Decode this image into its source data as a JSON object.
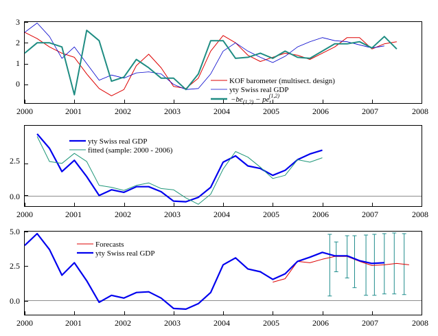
{
  "chart_data": [
    {
      "type": "line",
      "title": "",
      "xlim": [
        2000,
        2008
      ],
      "ylim": [
        -0.9,
        3
      ],
      "x_ticks": [
        "2000",
        "2001",
        "2002",
        "2003",
        "2004",
        "2005",
        "2006",
        "2007",
        "2008"
      ],
      "y_ticks": [
        "0",
        "1",
        "2",
        "3"
      ],
      "legend_position": "lower-right",
      "series": [
        {
          "name": "KOF barometer (multisect. design)",
          "color": "#dd0000",
          "width": 1,
          "x": [
            2000.0,
            2000.25,
            2000.5,
            2000.75,
            2001.0,
            2001.25,
            2001.5,
            2001.75,
            2002.0,
            2002.25,
            2002.5,
            2002.75,
            2003.0,
            2003.25,
            2003.5,
            2003.75,
            2004.0,
            2004.25,
            2004.5,
            2004.75,
            2005.0,
            2005.25,
            2005.5,
            2005.75,
            2006.0,
            2006.25,
            2006.5,
            2006.75,
            2007.0,
            2007.25,
            2007.5
          ],
          "values": [
            2.5,
            2.2,
            1.8,
            1.5,
            1.3,
            0.5,
            -0.2,
            -0.55,
            -0.25,
            0.9,
            1.45,
            0.8,
            -0.1,
            -0.2,
            0.3,
            1.6,
            2.35,
            2.0,
            1.4,
            1.1,
            1.3,
            1.5,
            1.4,
            1.2,
            1.5,
            1.8,
            2.25,
            2.25,
            1.7,
            1.95,
            2.05
          ]
        },
        {
          "name": "yty Swiss real GDP",
          "color": "#0000cc",
          "width": 0.8,
          "x": [
            2000.0,
            2000.25,
            2000.5,
            2000.75,
            2001.0,
            2001.25,
            2001.5,
            2001.75,
            2002.0,
            2002.25,
            2002.5,
            2002.75,
            2003.0,
            2003.25,
            2003.5,
            2003.75,
            2004.0,
            2004.25,
            2004.5,
            2004.75,
            2005.0,
            2005.25,
            2005.5,
            2005.75,
            2006.0,
            2006.25,
            2006.5,
            2006.75,
            2007.0,
            2007.25
          ],
          "values": [
            2.5,
            2.95,
            2.3,
            1.25,
            1.8,
            1.0,
            0.2,
            0.45,
            0.3,
            0.55,
            0.6,
            0.5,
            0.0,
            -0.25,
            -0.2,
            0.5,
            1.6,
            2.0,
            1.6,
            1.3,
            1.05,
            1.35,
            1.8,
            2.05,
            2.25,
            2.1,
            2.05,
            1.9,
            1.75,
            1.85
          ]
        },
        {
          "name": "",
          "color": "#1e8c82",
          "width": 2,
          "x": [
            2000.0,
            2000.25,
            2000.5,
            2000.75,
            2001.0,
            2001.25,
            2001.5,
            2001.75,
            2002.0,
            2002.25,
            2002.5,
            2002.75,
            2003.0,
            2003.25,
            2003.5,
            2003.75,
            2004.0,
            2004.25,
            2004.5,
            2004.75,
            2005.0,
            2005.25,
            2005.5,
            2005.75,
            2006.0,
            2006.25,
            2006.5,
            2006.75,
            2007.0,
            2007.25,
            2007.5
          ],
          "values": [
            1.5,
            2.0,
            2.0,
            1.8,
            -0.5,
            2.6,
            2.1,
            0.15,
            0.35,
            1.2,
            0.8,
            0.3,
            0.3,
            -0.25,
            0.5,
            2.1,
            2.1,
            1.25,
            1.3,
            1.5,
            1.25,
            1.6,
            1.3,
            1.25,
            1.6,
            1.95,
            1.95,
            2.05,
            1.75,
            2.3,
            1.7
          ]
        }
      ]
    },
    {
      "type": "line",
      "title": "",
      "xlim": [
        2000,
        2008
      ],
      "ylim": [
        -0.9,
        5.5
      ],
      "x_ticks": [
        "2000",
        "2001",
        "2002",
        "2003",
        "2004",
        "2005",
        "2006",
        "2007",
        "2008"
      ],
      "y_ticks": [
        "0.0",
        "2.5"
      ],
      "legend_position": "top-left",
      "series": [
        {
          "name": "yty Swiss real GDP",
          "color": "#0000ee",
          "width": 2.2,
          "x": [
            2000.25,
            2000.5,
            2000.75,
            2001.0,
            2001.25,
            2001.5,
            2001.75,
            2002.0,
            2002.25,
            2002.5,
            2002.75,
            2003.0,
            2003.25,
            2003.5,
            2003.75,
            2004.0,
            2004.25,
            2004.5,
            2004.75,
            2005.0,
            2005.25,
            2005.5,
            2005.75,
            2006.0
          ],
          "values": [
            4.85,
            3.7,
            1.85,
            2.75,
            1.45,
            -0.05,
            0.4,
            0.2,
            0.65,
            0.65,
            0.25,
            -0.5,
            -0.55,
            -0.2,
            0.6,
            2.6,
            3.1,
            2.3,
            2.1,
            1.55,
            1.95,
            2.8,
            3.25,
            3.55
          ]
        },
        {
          "name": "fitted (sample: 2000 - 2006)",
          "color": "#1e9678",
          "width": 1,
          "x": [
            2000.25,
            2000.5,
            2000.75,
            2001.0,
            2001.25,
            2001.5,
            2001.75,
            2002.0,
            2002.25,
            2002.5,
            2002.75,
            2003.0,
            2003.25,
            2003.5,
            2003.75,
            2004.0,
            2004.25,
            2004.5,
            2004.75,
            2005.0,
            2005.25,
            2005.5,
            2005.75,
            2006.0
          ],
          "values": [
            4.65,
            2.65,
            2.5,
            3.3,
            2.65,
            0.75,
            0.6,
            0.35,
            0.75,
            0.95,
            0.5,
            0.4,
            -0.25,
            -0.75,
            0.05,
            2.05,
            3.45,
            3.0,
            2.2,
            1.3,
            1.55,
            2.8,
            2.6,
            2.95
          ]
        }
      ]
    },
    {
      "type": "line",
      "title": "",
      "xlim": [
        2000,
        2008
      ],
      "ylim": [
        -1.0,
        5.0
      ],
      "x_ticks": [
        "2000",
        "2001",
        "2002",
        "2003",
        "2004",
        "2005",
        "2006",
        "2007",
        "2008"
      ],
      "y_ticks": [
        "0.0",
        "2.5",
        "5.0"
      ],
      "legend_position": "top-left",
      "series": [
        {
          "name": "Forecasts",
          "color": "#dd0000",
          "width": 1,
          "x": [
            2005.0,
            2005.25,
            2005.5,
            2005.75,
            2006.0,
            2006.25,
            2006.5,
            2006.75,
            2007.0,
            2007.25,
            2007.5,
            2007.75
          ],
          "values": [
            1.35,
            1.6,
            2.85,
            2.75,
            3.0,
            3.2,
            3.2,
            2.85,
            2.55,
            2.6,
            2.7,
            2.6
          ]
        },
        {
          "name": "yty Swiss real GDP",
          "color": "#0000ee",
          "width": 2.2,
          "x": [
            2000.0,
            2000.25,
            2000.5,
            2000.75,
            2001.0,
            2001.25,
            2001.5,
            2001.75,
            2002.0,
            2002.25,
            2002.5,
            2002.75,
            2003.0,
            2003.25,
            2003.5,
            2003.75,
            2004.0,
            2004.25,
            2004.5,
            2004.75,
            2005.0,
            2005.25,
            2005.5,
            2005.75,
            2006.0,
            2006.25,
            2006.5,
            2006.75,
            2007.0,
            2007.25
          ],
          "values": [
            4.0,
            4.85,
            3.7,
            1.85,
            2.75,
            1.45,
            -0.1,
            0.4,
            0.2,
            0.6,
            0.65,
            0.2,
            -0.55,
            -0.6,
            -0.2,
            0.6,
            2.6,
            3.1,
            2.3,
            2.1,
            1.55,
            1.95,
            2.85,
            3.15,
            3.5,
            3.25,
            3.25,
            2.9,
            2.7,
            2.75
          ]
        }
      ],
      "error_bars": {
        "color": "#1e8c8c",
        "x": [
          2006.15,
          2006.28,
          2006.5,
          2006.65,
          2006.88,
          2007.05,
          2007.25,
          2007.45,
          2007.65
        ],
        "low": [
          0.35,
          2.1,
          1.65,
          0.95,
          0.4,
          0.4,
          0.5,
          0.5,
          0.45
        ],
        "high": [
          4.8,
          4.25,
          4.7,
          4.7,
          4.75,
          4.8,
          4.85,
          4.9,
          4.85
        ]
      }
    }
  ]
}
